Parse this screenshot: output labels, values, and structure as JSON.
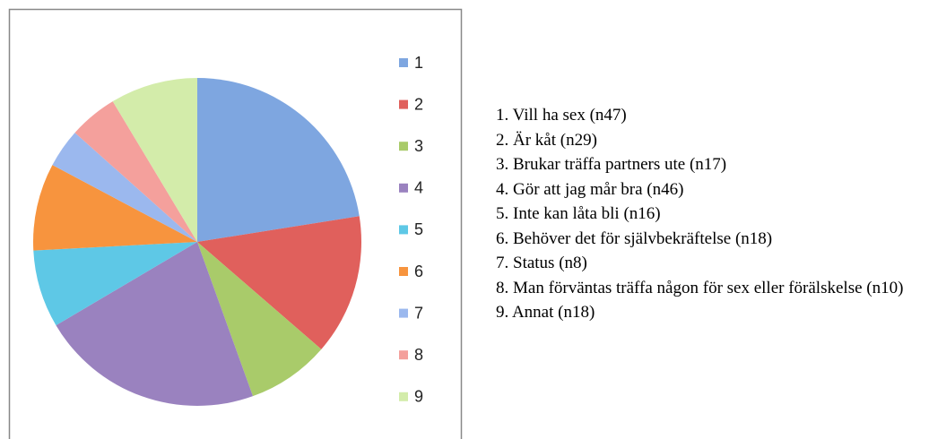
{
  "chart_data": {
    "type": "pie",
    "categories": [
      "1",
      "2",
      "3",
      "4",
      "5",
      "6",
      "7",
      "8",
      "9"
    ],
    "values": [
      47,
      29,
      17,
      46,
      16,
      18,
      8,
      10,
      18
    ],
    "colors": [
      "#7ea6e0",
      "#e0605c",
      "#a9cb6a",
      "#9a82bf",
      "#5ec8e6",
      "#f7943e",
      "#9bb8ee",
      "#f4a09c",
      "#d3ecaa"
    ],
    "legend": "right"
  },
  "notes": [
    "1. Vill ha sex (n47)",
    "2. Är kåt (n29)",
    "3. Brukar träffa partners ute (n17)",
    "4. Gör att jag mår bra (n46)",
    "5. Inte kan låta bli (n16)",
    "6. Behöver det för självbekräftelse (n18)",
    "7. Status (n8)",
    "8. Man förväntas träffa någon för sex eller förälskelse (n10)",
    "9. Annat (n18)"
  ]
}
